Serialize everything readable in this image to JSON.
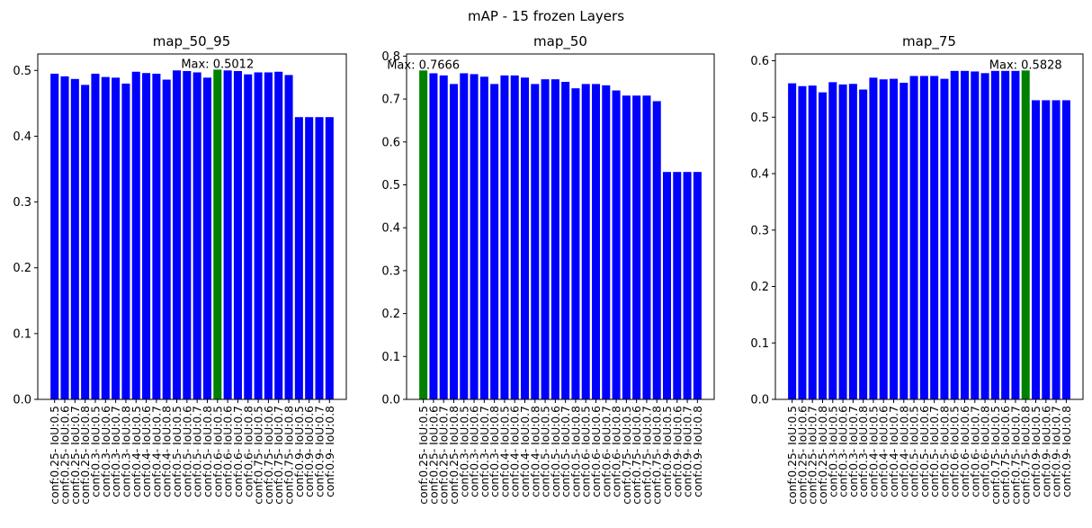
{
  "figure": {
    "suptitle": "mAP - 15 frozen Layers"
  },
  "colors": {
    "bar": "#0000ff",
    "max_bar": "#008000",
    "axes": "#000000"
  },
  "chart_data": [
    {
      "type": "bar",
      "title": "map_50_95",
      "xlabel": "",
      "ylabel": "",
      "ylim": [
        0,
        0.525
      ],
      "yticks": [
        0.0,
        0.1,
        0.2,
        0.3,
        0.4,
        0.5
      ],
      "categories": [
        "conf:0.25- IoU:0.5",
        "conf:0.25- IoU:0.6",
        "conf:0.25- IoU:0.7",
        "conf:0.25- IoU:0.8",
        "conf:0.3- IoU:0.5",
        "conf:0.3- IoU:0.6",
        "conf:0.3- IoU:0.7",
        "conf:0.3- IoU:0.8",
        "conf:0.4- IoU:0.5",
        "conf:0.4- IoU:0.6",
        "conf:0.4- IoU:0.7",
        "conf:0.4- IoU:0.8",
        "conf:0.5- IoU:0.5",
        "conf:0.5- IoU:0.6",
        "conf:0.5- IoU:0.7",
        "conf:0.5- IoU:0.8",
        "conf:0.6- IoU:0.5",
        "conf:0.6- IoU:0.6",
        "conf:0.6- IoU:0.7",
        "conf:0.6- IoU:0.8",
        "conf:0.75- IoU:0.5",
        "conf:0.75- IoU:0.6",
        "conf:0.75- IoU:0.7",
        "conf:0.75- IoU:0.8",
        "conf:0.9- IoU:0.5",
        "conf:0.9- IoU:0.6",
        "conf:0.9- IoU:0.7",
        "conf:0.9- IoU:0.8"
      ],
      "values": [
        0.495,
        0.491,
        0.487,
        0.478,
        0.495,
        0.49,
        0.489,
        0.48,
        0.498,
        0.496,
        0.495,
        0.486,
        0.5,
        0.499,
        0.497,
        0.489,
        0.5012,
        0.5,
        0.499,
        0.494,
        0.497,
        0.497,
        0.498,
        0.493,
        0.429,
        0.429,
        0.429,
        0.429
      ],
      "max_index": 16,
      "max_label": "Max: 0.5012"
    },
    {
      "type": "bar",
      "title": "map_50",
      "xlabel": "",
      "ylabel": "",
      "ylim": [
        0,
        0.805
      ],
      "yticks": [
        0.0,
        0.1,
        0.2,
        0.3,
        0.4,
        0.5,
        0.6,
        0.7,
        0.8
      ],
      "categories": [
        "conf:0.25- IoU:0.5",
        "conf:0.25- IoU:0.6",
        "conf:0.25- IoU:0.7",
        "conf:0.25- IoU:0.8",
        "conf:0.3- IoU:0.5",
        "conf:0.3- IoU:0.6",
        "conf:0.3- IoU:0.7",
        "conf:0.3- IoU:0.8",
        "conf:0.4- IoU:0.5",
        "conf:0.4- IoU:0.6",
        "conf:0.4- IoU:0.7",
        "conf:0.4- IoU:0.8",
        "conf:0.5- IoU:0.5",
        "conf:0.5- IoU:0.6",
        "conf:0.5- IoU:0.7",
        "conf:0.5- IoU:0.8",
        "conf:0.6- IoU:0.5",
        "conf:0.6- IoU:0.6",
        "conf:0.6- IoU:0.7",
        "conf:0.6- IoU:0.8",
        "conf:0.75- IoU:0.5",
        "conf:0.75- IoU:0.6",
        "conf:0.75- IoU:0.7",
        "conf:0.75- IoU:0.8",
        "conf:0.9- IoU:0.5",
        "conf:0.9- IoU:0.6",
        "conf:0.9- IoU:0.7",
        "conf:0.9- IoU:0.8"
      ],
      "values": [
        0.7666,
        0.76,
        0.755,
        0.735,
        0.76,
        0.758,
        0.752,
        0.735,
        0.755,
        0.755,
        0.75,
        0.735,
        0.746,
        0.746,
        0.74,
        0.725,
        0.735,
        0.735,
        0.732,
        0.72,
        0.708,
        0.708,
        0.708,
        0.695,
        0.53,
        0.53,
        0.53,
        0.53
      ],
      "max_index": 0,
      "max_label": "Max: 0.7666"
    },
    {
      "type": "bar",
      "title": "map_75",
      "xlabel": "",
      "ylabel": "",
      "ylim": [
        0,
        0.612
      ],
      "yticks": [
        0.0,
        0.1,
        0.2,
        0.3,
        0.4,
        0.5,
        0.6
      ],
      "categories": [
        "conf:0.25- IoU:0.5",
        "conf:0.25- IoU:0.6",
        "conf:0.25- IoU:0.7",
        "conf:0.25- IoU:0.8",
        "conf:0.3- IoU:0.5",
        "conf:0.3- IoU:0.6",
        "conf:0.3- IoU:0.7",
        "conf:0.3- IoU:0.8",
        "conf:0.4- IoU:0.5",
        "conf:0.4- IoU:0.6",
        "conf:0.4- IoU:0.7",
        "conf:0.4- IoU:0.8",
        "conf:0.5- IoU:0.5",
        "conf:0.5- IoU:0.6",
        "conf:0.5- IoU:0.7",
        "conf:0.5- IoU:0.8",
        "conf:0.6- IoU:0.5",
        "conf:0.6- IoU:0.6",
        "conf:0.6- IoU:0.7",
        "conf:0.6- IoU:0.8",
        "conf:0.75- IoU:0.5",
        "conf:0.75- IoU:0.6",
        "conf:0.75- IoU:0.7",
        "conf:0.75- IoU:0.8",
        "conf:0.9- IoU:0.5",
        "conf:0.9- IoU:0.6",
        "conf:0.9- IoU:0.7",
        "conf:0.9- IoU:0.8"
      ],
      "values": [
        0.56,
        0.555,
        0.556,
        0.544,
        0.562,
        0.558,
        0.559,
        0.549,
        0.57,
        0.567,
        0.568,
        0.561,
        0.573,
        0.573,
        0.573,
        0.568,
        0.582,
        0.582,
        0.581,
        0.578,
        0.582,
        0.582,
        0.582,
        0.5828,
        0.53,
        0.53,
        0.53,
        0.53
      ],
      "max_index": 23,
      "max_label": "Max: 0.5828"
    }
  ]
}
